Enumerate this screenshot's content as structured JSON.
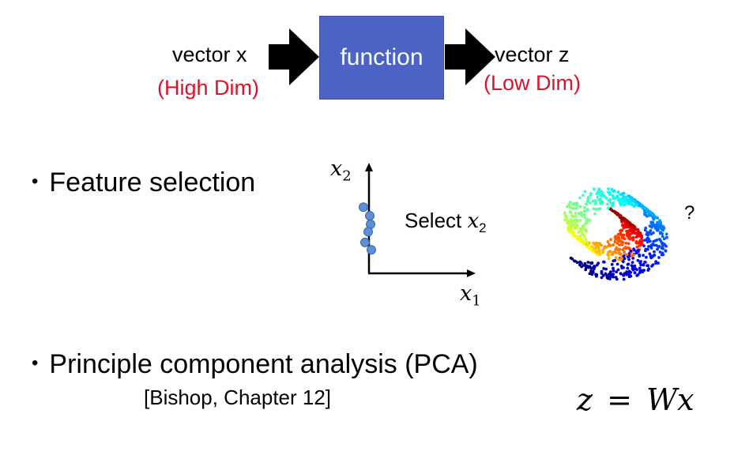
{
  "diagram": {
    "input_label": "vector x",
    "input_note": "(High Dim)",
    "function_label": "function",
    "output_label": "vector z",
    "output_note": "(Low Dim)",
    "note_color": "#e0102a",
    "box_color": "#4d63c4"
  },
  "bullets": [
    {
      "text": "Feature selection"
    },
    {
      "text": "Principle component analysis (PCA)",
      "reference": "[Bishop, Chapter 12]"
    }
  ],
  "feature_plot": {
    "y_axis_var": "x",
    "y_axis_sub": "2",
    "x_axis_var": "x",
    "x_axis_sub": "1",
    "select_text": "Select ",
    "select_var": "x",
    "select_sub": "2",
    "point_color": "#5b8fd6",
    "points_x2": [
      6.2,
      5.4,
      4.6,
      3.9,
      2.9,
      2.2
    ]
  },
  "swiss_roll": {
    "question_mark": "?",
    "colormap": "jet"
  },
  "formula": {
    "lhs": "z",
    "eq": "=",
    "rhs": "Wx"
  }
}
